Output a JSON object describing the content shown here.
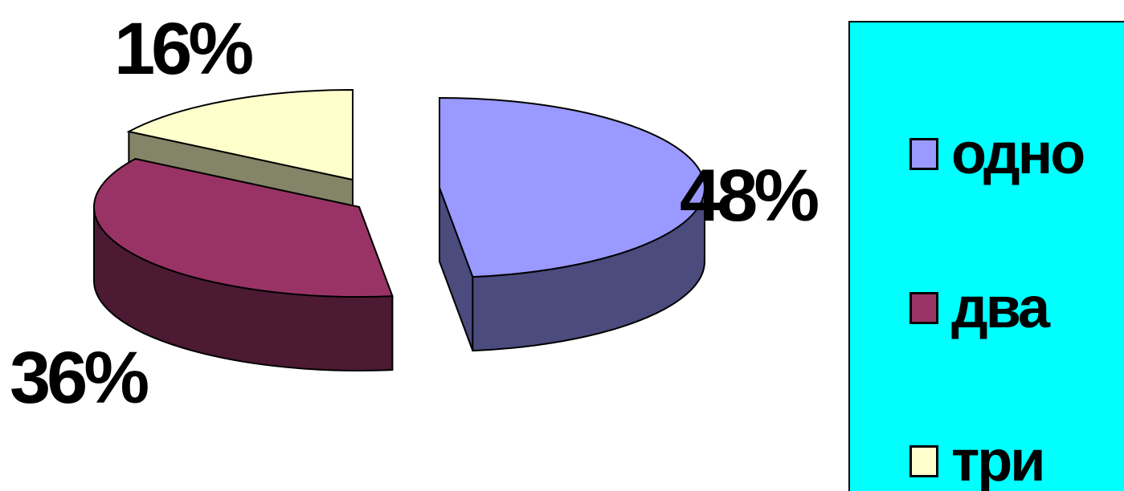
{
  "chart_data": {
    "type": "pie",
    "style": "3d-exploded",
    "slices": [
      {
        "category": "одно",
        "value": 48,
        "label": "48%",
        "color": "#9999ff",
        "side_color": "#4b4b7e"
      },
      {
        "category": "два",
        "value": 36,
        "label": "36%",
        "color": "#993366",
        "side_color": "#4c1a33"
      },
      {
        "category": "три",
        "value": 16,
        "label": "16%",
        "color": "#ffffcc",
        "side_color": "#848468"
      }
    ],
    "legend": {
      "placement": "right",
      "background": "#00ffff",
      "entries": [
        "одно",
        "два",
        "три"
      ]
    }
  }
}
